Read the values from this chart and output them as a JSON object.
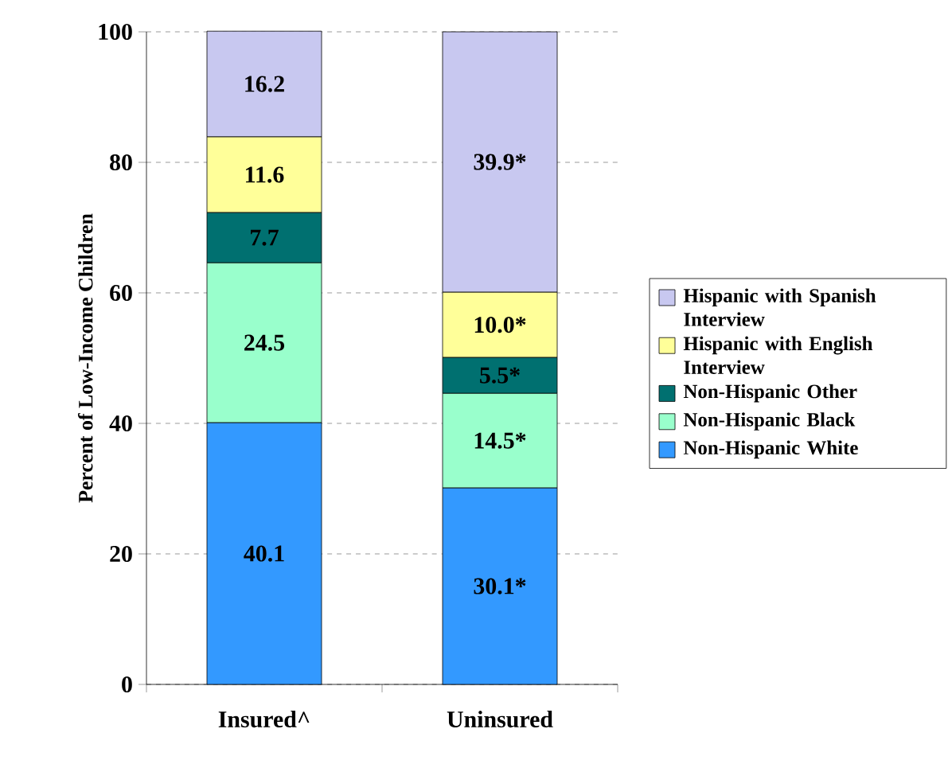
{
  "chart_data": {
    "type": "bar",
    "stacked": true,
    "ylabel": "Percent of Low-Income Children",
    "categories": [
      "Insured^",
      "Uninsured"
    ],
    "series": [
      {
        "name": "Non-Hispanic White",
        "color": "#3399ff",
        "values": [
          40.1,
          30.1
        ],
        "value_labels": [
          "40.1",
          "30.1*"
        ]
      },
      {
        "name": "Non-Hispanic Black",
        "color": "#99ffcc",
        "values": [
          24.5,
          14.5
        ],
        "value_labels": [
          "24.5",
          "14.5*"
        ]
      },
      {
        "name": "Non-Hispanic Other",
        "color": "#007070",
        "values": [
          7.7,
          5.5
        ],
        "value_labels": [
          "7.7",
          "5.5*"
        ]
      },
      {
        "name": "Hispanic with English Interview",
        "color": "#ffff99",
        "values": [
          11.6,
          10.0
        ],
        "value_labels": [
          "11.6",
          "10.0*"
        ]
      },
      {
        "name": "Hispanic with Spanish Interview",
        "color": "#c8c8f0",
        "values": [
          16.2,
          39.9
        ],
        "value_labels": [
          "16.2",
          "39.9*"
        ]
      }
    ],
    "ylim": [
      0,
      100
    ],
    "yticks": [
      0,
      20,
      40,
      60,
      80,
      100
    ],
    "grid": "y",
    "legend": "right"
  }
}
